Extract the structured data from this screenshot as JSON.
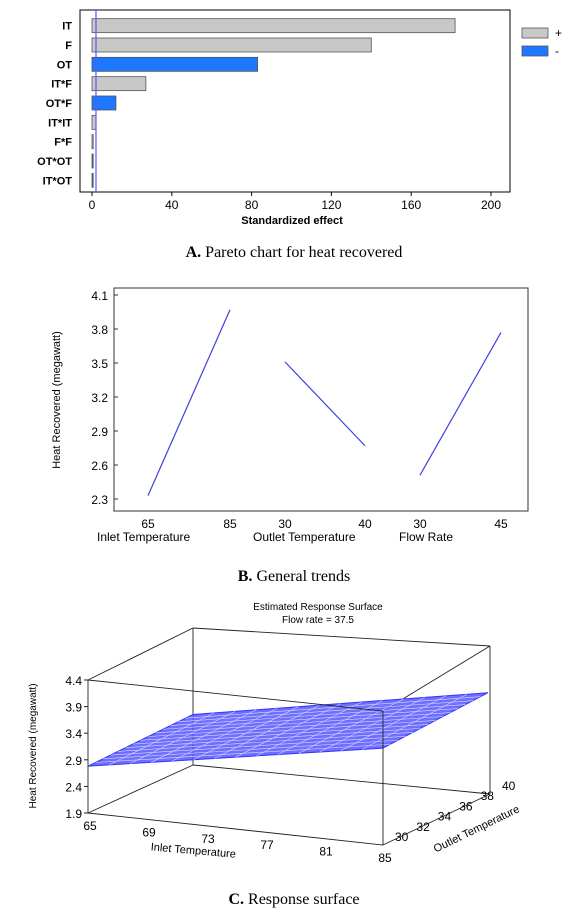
{
  "chart_data": [
    {
      "type": "bar",
      "orientation": "horizontal",
      "categories": [
        "IT",
        "F",
        "OT",
        "IT*F",
        "OT*F",
        "IT*IT",
        "F*F",
        "OT*OT",
        "IT*OT"
      ],
      "values": [
        182,
        140,
        83,
        27,
        12,
        2,
        0.5,
        0.4,
        0.3
      ],
      "signs": [
        "+",
        "+",
        "-",
        "+",
        "-",
        "+",
        "+",
        "-",
        "-"
      ],
      "xlabel": "Standardized  effect",
      "xlim": [
        0,
        200
      ],
      "xticks": [
        "0",
        "40",
        "80",
        "120",
        "160",
        "200"
      ],
      "reference_line": 2,
      "legend": {
        "entries": [
          "+",
          "-"
        ],
        "colors": [
          "#c8c8c8",
          "#1e78ff"
        ],
        "placement": "top-right"
      }
    },
    {
      "type": "line",
      "ylabel": "Heat Recovered (megawatt)",
      "ylim": [
        2.25,
        4.15
      ],
      "yticks": [
        "4.1",
        "3.8",
        "3.5",
        "3.2",
        "2.9",
        "2.6",
        "2.3"
      ],
      "series": [
        {
          "factor": "Inlet Temperature",
          "x": [
            65,
            85
          ],
          "y": [
            2.33,
            3.97
          ],
          "ticks": [
            "65",
            "85"
          ]
        },
        {
          "factor": "Outlet Temperature",
          "x": [
            30,
            40
          ],
          "y": [
            3.51,
            2.77
          ],
          "ticks": [
            "30",
            "40"
          ]
        },
        {
          "factor": "Flow Rate",
          "x": [
            30,
            45
          ],
          "y": [
            2.51,
            3.77
          ],
          "ticks": [
            "30",
            "45"
          ]
        }
      ]
    },
    {
      "type": "surface",
      "title": "Estimated Response Surface",
      "subtitle": "Flow rate = 37.5",
      "xlabel": "Inlet Temperature",
      "ylabel": "Outlet Temperature",
      "zlabel": "Heat Recovered (megawatt)",
      "xticks": [
        "65",
        "69",
        "73",
        "77",
        "81",
        "85"
      ],
      "yticks": [
        "30",
        "32",
        "34",
        "36",
        "38",
        "40"
      ],
      "zticks": [
        "4.4",
        "3.9",
        "3.4",
        "2.9",
        "2.4",
        "1.9"
      ],
      "xlim": [
        65,
        85
      ],
      "ylim": [
        30,
        40
      ],
      "zlim": [
        1.9,
        4.4
      ],
      "corners": [
        {
          "x": 65,
          "y": 30,
          "z": 2.78
        },
        {
          "x": 85,
          "y": 30,
          "z": 3.72
        },
        {
          "x": 65,
          "y": 40,
          "z": 2.85
        },
        {
          "x": 85,
          "y": 40,
          "z": 3.86
        }
      ]
    }
  ],
  "captions": {
    "a_letter": "A.",
    "a_text": " Pareto chart for heat recovered",
    "b_letter": "B.",
    "b_text": " General trends",
    "c_letter": "C.",
    "c_text": " Response surface"
  },
  "colors": {
    "positive_bar": "#c8c8c8",
    "negative_bar": "#1e78ff",
    "trend_line": "#4040e0",
    "surface": "#3333ff"
  }
}
